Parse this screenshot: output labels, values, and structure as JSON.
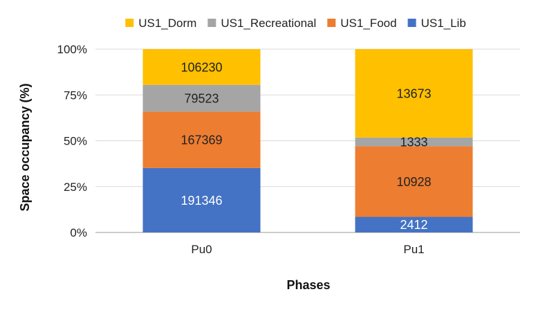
{
  "chart_data": {
    "type": "bar",
    "stacked": "percent",
    "categories": [
      "Pu0",
      "Pu1"
    ],
    "series": [
      {
        "name": "US1_Lib",
        "values": [
          191346,
          2412
        ],
        "color": "#4472C4",
        "label_color": "#ffffff"
      },
      {
        "name": "US1_Food",
        "values": [
          167369,
          10928
        ],
        "color": "#ED7D31",
        "label_color": "#222222"
      },
      {
        "name": "US1_Recreational",
        "values": [
          79523,
          1333
        ],
        "color": "#A5A5A5",
        "label_color": "#222222"
      },
      {
        "name": "US1_Dorm",
        "values": [
          106230,
          13673
        ],
        "color": "#FFC000",
        "label_color": "#222222"
      }
    ],
    "legend_order": [
      "US1_Dorm",
      "US1_Recreational",
      "US1_Food",
      "US1_Lib"
    ],
    "legend_position": "top",
    "title": "",
    "xlabel": "Phases",
    "ylabel": "Space occupancy (%)",
    "ylim": [
      0,
      100
    ],
    "yticks": [
      "0%",
      "25%",
      "50%",
      "75%",
      "100%"
    ],
    "grid": true,
    "grid_color": "#D9D9D9"
  }
}
